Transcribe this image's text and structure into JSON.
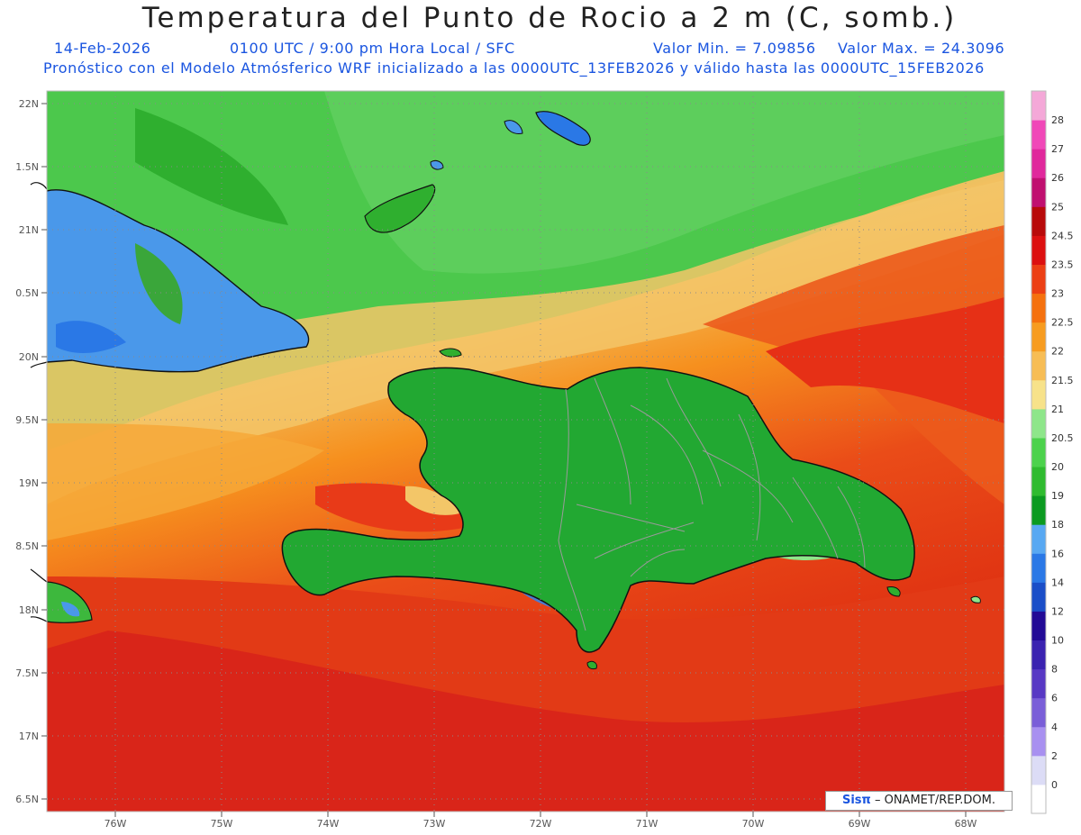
{
  "title": "Temperatura del Punto de Rocio a 2 m (C, somb.)",
  "subtitle": {
    "date": "14-Feb-2026",
    "time": "0100 UTC / 9:00 pm Hora Local / SFC",
    "min": "Valor Min. = 7.09856",
    "max": "Valor Max. = 24.3096",
    "model": "Pronóstico con el Modelo Atmósferico WRF inicializado a las 0000UTC_13FEB2026 y válido hasta las  0000UTC_15FEB2026"
  },
  "lat_labels": [
    "22N",
    "1.5N",
    "21N",
    "0.5N",
    "20N",
    "9.5N",
    "19N",
    "8.5N",
    "18N",
    "7.5N",
    "17N",
    "6.5N"
  ],
  "lon_labels": [
    "76W",
    "75W",
    "74W",
    "73W",
    "72W",
    "71W",
    "70W",
    "69W",
    "68W"
  ],
  "colorbar": {
    "labels": [
      "0",
      "2",
      "4",
      "6",
      "8",
      "10",
      "12",
      "14",
      "16",
      "18",
      "19",
      "20",
      "20.5",
      "21",
      "21.5",
      "22",
      "22.5",
      "23",
      "23.5",
      "24.5",
      "25",
      "26",
      "27",
      "28"
    ],
    "colors": [
      "#ffffff",
      "#dcdcf6",
      "#a890f0",
      "#7a5ed8",
      "#5838c4",
      "#3a22b0",
      "#220a96",
      "#1a4ec8",
      "#2a78e6",
      "#58a8f2",
      "#0b9a20",
      "#2fbb2f",
      "#4cd24c",
      "#8ee68a",
      "#f7e28a",
      "#f7bd55",
      "#f79c20",
      "#f5710e",
      "#ec3f14",
      "#dc1010",
      "#b80a0a",
      "#c01070",
      "#e0289c",
      "#f048b8",
      "#f4a8d8"
    ]
  },
  "credit": {
    "logo": "Sisπ",
    "text": "– ONAMET/REP.DOM."
  },
  "colors": {
    "ocean_red": "#e63a1c",
    "ocean_orange": "#f58a1e",
    "sea_green": "#4cc84c",
    "cuba_blue": "#4a98ea",
    "hispaniola_green": "#22a832",
    "lowdew_blue": "#2a78e6"
  }
}
